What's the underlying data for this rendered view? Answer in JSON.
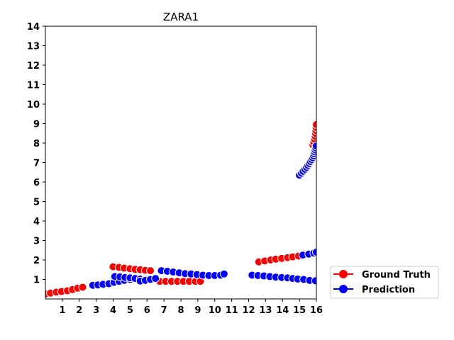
{
  "chart_data": {
    "type": "scatter",
    "title": "ZARA1",
    "xlabel": "",
    "ylabel": "",
    "xlim": [
      0,
      16
    ],
    "ylim": [
      0,
      14
    ],
    "x_ticks": [
      1,
      2,
      3,
      4,
      5,
      6,
      7,
      8,
      9,
      10,
      11,
      12,
      13,
      14,
      15,
      16
    ],
    "y_ticks": [
      1,
      2,
      3,
      4,
      5,
      6,
      7,
      8,
      9,
      10,
      11,
      12,
      13,
      14
    ],
    "grid": false,
    "legend_position": "right, outside plot",
    "series": [
      {
        "name": "Ground Truth",
        "color": "#ff0000",
        "edge_color": "#ffffff",
        "points": [
          [
            0.0,
            0.25
          ],
          [
            0.3,
            0.3
          ],
          [
            0.65,
            0.35
          ],
          [
            0.95,
            0.38
          ],
          [
            1.3,
            0.42
          ],
          [
            1.6,
            0.48
          ],
          [
            1.9,
            0.55
          ],
          [
            2.2,
            0.6
          ],
          [
            4.0,
            1.65
          ],
          [
            4.35,
            1.62
          ],
          [
            4.65,
            1.58
          ],
          [
            5.0,
            1.55
          ],
          [
            5.3,
            1.52
          ],
          [
            5.6,
            1.5
          ],
          [
            5.9,
            1.47
          ],
          [
            6.2,
            1.45
          ],
          [
            6.75,
            0.9
          ],
          [
            7.1,
            0.9
          ],
          [
            7.45,
            0.9
          ],
          [
            7.8,
            0.9
          ],
          [
            8.15,
            0.9
          ],
          [
            8.5,
            0.9
          ],
          [
            8.85,
            0.9
          ],
          [
            9.15,
            0.9
          ],
          [
            12.6,
            1.9
          ],
          [
            12.95,
            1.95
          ],
          [
            13.3,
            2.0
          ],
          [
            13.6,
            2.04
          ],
          [
            13.95,
            2.08
          ],
          [
            14.3,
            2.12
          ],
          [
            14.6,
            2.16
          ],
          [
            14.95,
            2.2
          ],
          [
            15.8,
            7.9
          ],
          [
            15.85,
            8.05
          ],
          [
            15.9,
            8.2
          ],
          [
            15.93,
            8.35
          ],
          [
            15.95,
            8.5
          ],
          [
            15.97,
            8.65
          ],
          [
            15.99,
            8.8
          ],
          [
            16.0,
            8.95
          ]
        ]
      },
      {
        "name": "Prediction",
        "color": "#0000ff",
        "edge_color": "#ffffff",
        "points": [
          [
            2.8,
            0.7
          ],
          [
            3.1,
            0.72
          ],
          [
            3.4,
            0.75
          ],
          [
            3.75,
            0.78
          ],
          [
            4.05,
            0.85
          ],
          [
            4.35,
            0.9
          ],
          [
            4.65,
            0.95
          ],
          [
            5.0,
            1.0
          ],
          [
            4.1,
            1.15
          ],
          [
            4.4,
            1.13
          ],
          [
            4.7,
            1.1
          ],
          [
            5.0,
            1.08
          ],
          [
            5.3,
            1.05
          ],
          [
            5.6,
            1.02
          ],
          [
            5.9,
            1.0
          ],
          [
            6.25,
            0.98
          ],
          [
            5.6,
            0.92
          ],
          [
            5.9,
            0.95
          ],
          [
            6.2,
            1.0
          ],
          [
            6.5,
            1.05
          ],
          [
            6.85,
            1.45
          ],
          [
            7.2,
            1.42
          ],
          [
            7.55,
            1.38
          ],
          [
            7.9,
            1.34
          ],
          [
            8.25,
            1.3
          ],
          [
            8.6,
            1.28
          ],
          [
            8.95,
            1.25
          ],
          [
            9.3,
            1.22
          ],
          [
            9.65,
            1.2
          ],
          [
            10.0,
            1.2
          ],
          [
            10.35,
            1.22
          ],
          [
            10.55,
            1.28
          ],
          [
            12.2,
            1.22
          ],
          [
            12.55,
            1.2
          ],
          [
            12.9,
            1.18
          ],
          [
            13.25,
            1.15
          ],
          [
            13.6,
            1.12
          ],
          [
            13.95,
            1.1
          ],
          [
            14.3,
            1.08
          ],
          [
            14.6,
            1.05
          ],
          [
            14.9,
            1.02
          ],
          [
            15.25,
            1.0
          ],
          [
            15.6,
            0.95
          ],
          [
            15.95,
            0.93
          ],
          [
            15.2,
            2.25
          ],
          [
            15.55,
            2.3
          ],
          [
            15.85,
            2.35
          ],
          [
            16.0,
            2.4
          ],
          [
            15.0,
            6.35
          ],
          [
            15.12,
            6.45
          ],
          [
            15.22,
            6.55
          ],
          [
            15.32,
            6.65
          ],
          [
            15.42,
            6.75
          ],
          [
            15.5,
            6.85
          ],
          [
            15.58,
            6.95
          ],
          [
            15.65,
            7.05
          ],
          [
            15.72,
            7.15
          ],
          [
            15.78,
            7.25
          ],
          [
            15.83,
            7.35
          ],
          [
            15.87,
            7.45
          ],
          [
            15.9,
            7.55
          ],
          [
            15.93,
            7.65
          ],
          [
            15.96,
            7.75
          ],
          [
            15.99,
            7.85
          ]
        ]
      }
    ]
  }
}
